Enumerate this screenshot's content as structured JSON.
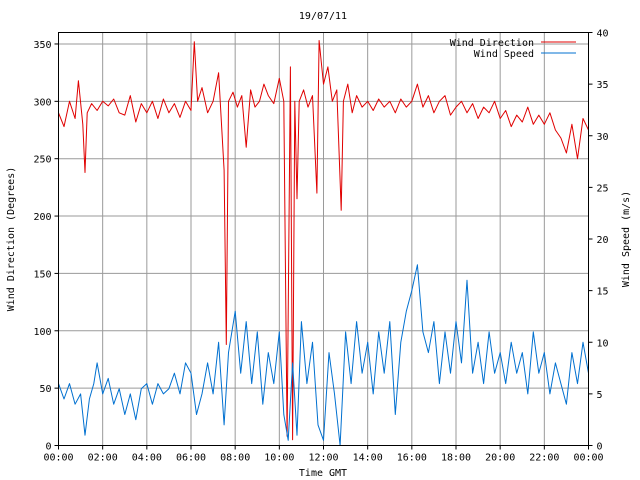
{
  "chart_data": {
    "type": "line",
    "title": "19/07/11",
    "xlabel": "Time GMT",
    "ylabel_left": "Wind Direction (Degrees)",
    "ylabel_right": "Wind Speed (m/s)",
    "x_range_hours": [
      0,
      24
    ],
    "x_tick_labels": [
      "00:00",
      "02:00",
      "04:00",
      "06:00",
      "08:00",
      "10:00",
      "12:00",
      "14:00",
      "16:00",
      "18:00",
      "20:00",
      "22:00",
      "00:00"
    ],
    "ylim_left": [
      0,
      360
    ],
    "y_ticks_left": [
      0,
      50,
      100,
      150,
      200,
      250,
      300,
      350
    ],
    "ylim_right": [
      0,
      40
    ],
    "y_ticks_right": [
      0,
      5,
      10,
      15,
      20,
      25,
      30,
      35,
      40
    ],
    "grid": true,
    "legend_position": "top-right",
    "series": [
      {
        "name": "Wind Direction",
        "axis": "left",
        "color": "#e00000",
        "points": [
          [
            0.0,
            290
          ],
          [
            0.25,
            278
          ],
          [
            0.5,
            300
          ],
          [
            0.75,
            285
          ],
          [
            0.9,
            318
          ],
          [
            1.1,
            280
          ],
          [
            1.2,
            238
          ],
          [
            1.3,
            290
          ],
          [
            1.5,
            298
          ],
          [
            1.75,
            292
          ],
          [
            2.0,
            300
          ],
          [
            2.25,
            296
          ],
          [
            2.5,
            302
          ],
          [
            2.75,
            290
          ],
          [
            3.0,
            288
          ],
          [
            3.25,
            305
          ],
          [
            3.5,
            282
          ],
          [
            3.75,
            298
          ],
          [
            4.0,
            290
          ],
          [
            4.25,
            300
          ],
          [
            4.5,
            285
          ],
          [
            4.75,
            302
          ],
          [
            5.0,
            290
          ],
          [
            5.25,
            298
          ],
          [
            5.5,
            286
          ],
          [
            5.75,
            300
          ],
          [
            6.0,
            292
          ],
          [
            6.15,
            352
          ],
          [
            6.3,
            300
          ],
          [
            6.5,
            312
          ],
          [
            6.75,
            290
          ],
          [
            7.0,
            300
          ],
          [
            7.25,
            325
          ],
          [
            7.5,
            240
          ],
          [
            7.6,
            88
          ],
          [
            7.7,
            300
          ],
          [
            7.9,
            308
          ],
          [
            8.1,
            295
          ],
          [
            8.3,
            305
          ],
          [
            8.5,
            260
          ],
          [
            8.7,
            310
          ],
          [
            8.9,
            295
          ],
          [
            9.1,
            300
          ],
          [
            9.3,
            315
          ],
          [
            9.5,
            305
          ],
          [
            9.75,
            298
          ],
          [
            10.0,
            320
          ],
          [
            10.2,
            300
          ],
          [
            10.35,
            8
          ],
          [
            10.5,
            330
          ],
          [
            10.6,
            5
          ],
          [
            10.7,
            300
          ],
          [
            10.8,
            215
          ],
          [
            10.9,
            300
          ],
          [
            11.1,
            310
          ],
          [
            11.3,
            295
          ],
          [
            11.5,
            305
          ],
          [
            11.7,
            220
          ],
          [
            11.8,
            353
          ],
          [
            12.0,
            315
          ],
          [
            12.2,
            330
          ],
          [
            12.4,
            300
          ],
          [
            12.6,
            310
          ],
          [
            12.8,
            205
          ],
          [
            12.9,
            300
          ],
          [
            13.1,
            315
          ],
          [
            13.3,
            290
          ],
          [
            13.5,
            305
          ],
          [
            13.75,
            295
          ],
          [
            14.0,
            300
          ],
          [
            14.25,
            292
          ],
          [
            14.5,
            302
          ],
          [
            14.75,
            295
          ],
          [
            15.0,
            300
          ],
          [
            15.25,
            290
          ],
          [
            15.5,
            302
          ],
          [
            15.75,
            295
          ],
          [
            16.0,
            300
          ],
          [
            16.25,
            315
          ],
          [
            16.5,
            295
          ],
          [
            16.75,
            305
          ],
          [
            17.0,
            290
          ],
          [
            17.25,
            300
          ],
          [
            17.5,
            305
          ],
          [
            17.75,
            288
          ],
          [
            18.0,
            295
          ],
          [
            18.25,
            300
          ],
          [
            18.5,
            290
          ],
          [
            18.75,
            298
          ],
          [
            19.0,
            285
          ],
          [
            19.25,
            295
          ],
          [
            19.5,
            290
          ],
          [
            19.75,
            300
          ],
          [
            20.0,
            285
          ],
          [
            20.25,
            292
          ],
          [
            20.5,
            278
          ],
          [
            20.75,
            288
          ],
          [
            21.0,
            282
          ],
          [
            21.25,
            295
          ],
          [
            21.5,
            280
          ],
          [
            21.75,
            288
          ],
          [
            22.0,
            280
          ],
          [
            22.25,
            290
          ],
          [
            22.5,
            275
          ],
          [
            22.75,
            268
          ],
          [
            23.0,
            255
          ],
          [
            23.25,
            280
          ],
          [
            23.5,
            250
          ],
          [
            23.75,
            285
          ],
          [
            24.0,
            275
          ]
        ]
      },
      {
        "name": "Wind Speed",
        "axis": "right",
        "color": "#0070d0",
        "points": [
          [
            0.0,
            6
          ],
          [
            0.25,
            4.5
          ],
          [
            0.5,
            6
          ],
          [
            0.75,
            4
          ],
          [
            1.0,
            5
          ],
          [
            1.2,
            1
          ],
          [
            1.4,
            4.5
          ],
          [
            1.6,
            6
          ],
          [
            1.75,
            8
          ],
          [
            2.0,
            5
          ],
          [
            2.25,
            6.5
          ],
          [
            2.5,
            4
          ],
          [
            2.75,
            5.5
          ],
          [
            3.0,
            3
          ],
          [
            3.25,
            5
          ],
          [
            3.5,
            2.5
          ],
          [
            3.75,
            5.5
          ],
          [
            4.0,
            6
          ],
          [
            4.25,
            4
          ],
          [
            4.5,
            6
          ],
          [
            4.75,
            5
          ],
          [
            5.0,
            5.5
          ],
          [
            5.25,
            7
          ],
          [
            5.5,
            5
          ],
          [
            5.75,
            8
          ],
          [
            6.0,
            7
          ],
          [
            6.25,
            3
          ],
          [
            6.5,
            5
          ],
          [
            6.75,
            8
          ],
          [
            7.0,
            5
          ],
          [
            7.25,
            10
          ],
          [
            7.5,
            2
          ],
          [
            7.7,
            9
          ],
          [
            8.0,
            13
          ],
          [
            8.25,
            7
          ],
          [
            8.5,
            12
          ],
          [
            8.75,
            6
          ],
          [
            9.0,
            11
          ],
          [
            9.25,
            4
          ],
          [
            9.5,
            9
          ],
          [
            9.75,
            6
          ],
          [
            10.0,
            11
          ],
          [
            10.2,
            3
          ],
          [
            10.4,
            0.5
          ],
          [
            10.6,
            8
          ],
          [
            10.8,
            1
          ],
          [
            11.0,
            12
          ],
          [
            11.25,
            6
          ],
          [
            11.5,
            10
          ],
          [
            11.75,
            2
          ],
          [
            12.0,
            0.5
          ],
          [
            12.25,
            9
          ],
          [
            12.5,
            5
          ],
          [
            12.75,
            0
          ],
          [
            13.0,
            11
          ],
          [
            13.25,
            6
          ],
          [
            13.5,
            12
          ],
          [
            13.75,
            7
          ],
          [
            14.0,
            10
          ],
          [
            14.25,
            5
          ],
          [
            14.5,
            11
          ],
          [
            14.75,
            7
          ],
          [
            15.0,
            12
          ],
          [
            15.25,
            3
          ],
          [
            15.5,
            10
          ],
          [
            15.75,
            13
          ],
          [
            16.0,
            15
          ],
          [
            16.25,
            17.5
          ],
          [
            16.5,
            11
          ],
          [
            16.75,
            9
          ],
          [
            17.0,
            12
          ],
          [
            17.25,
            6
          ],
          [
            17.5,
            11
          ],
          [
            17.75,
            7
          ],
          [
            18.0,
            12
          ],
          [
            18.25,
            8
          ],
          [
            18.5,
            16
          ],
          [
            18.75,
            7
          ],
          [
            19.0,
            10
          ],
          [
            19.25,
            6
          ],
          [
            19.5,
            11
          ],
          [
            19.75,
            7
          ],
          [
            20.0,
            9
          ],
          [
            20.25,
            6
          ],
          [
            20.5,
            10
          ],
          [
            20.75,
            7
          ],
          [
            21.0,
            9
          ],
          [
            21.25,
            5
          ],
          [
            21.5,
            11
          ],
          [
            21.75,
            7
          ],
          [
            22.0,
            9
          ],
          [
            22.25,
            5
          ],
          [
            22.5,
            8
          ],
          [
            22.75,
            6
          ],
          [
            23.0,
            4
          ],
          [
            23.25,
            9
          ],
          [
            23.5,
            6
          ],
          [
            23.75,
            10
          ],
          [
            24.0,
            7
          ]
        ]
      }
    ]
  }
}
